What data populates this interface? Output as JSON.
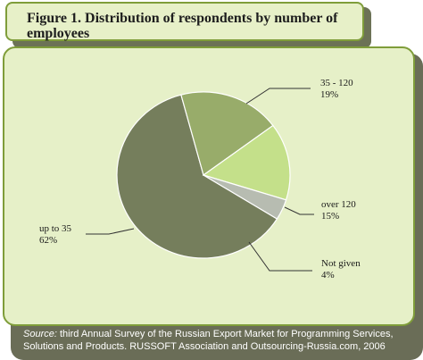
{
  "figure": {
    "title": "Figure 1. Distribution of respondents by number of employees",
    "source_label": "Source:",
    "source_text": " third Annual Survey of the Russian Export Market for Programming Services, Solutions and Products. RUSSOFT Association and Outsourcing-Russia.com, 2006"
  },
  "chart_data": {
    "type": "pie",
    "title": "Figure 1. Distribution of respondents by number of employees",
    "slices": [
      {
        "label": "up to  35",
        "value": 62,
        "value_label": "62%",
        "color": "#757e5c"
      },
      {
        "label": "35 - 120",
        "value": 19,
        "value_label": "19%",
        "color": "#98ac6a"
      },
      {
        "label": "over 120",
        "value": 15,
        "value_label": "15%",
        "color": "#c4e08a"
      },
      {
        "label": "Not given",
        "value": 4,
        "value_label": "4%",
        "color": "#b7bcb1"
      }
    ]
  }
}
